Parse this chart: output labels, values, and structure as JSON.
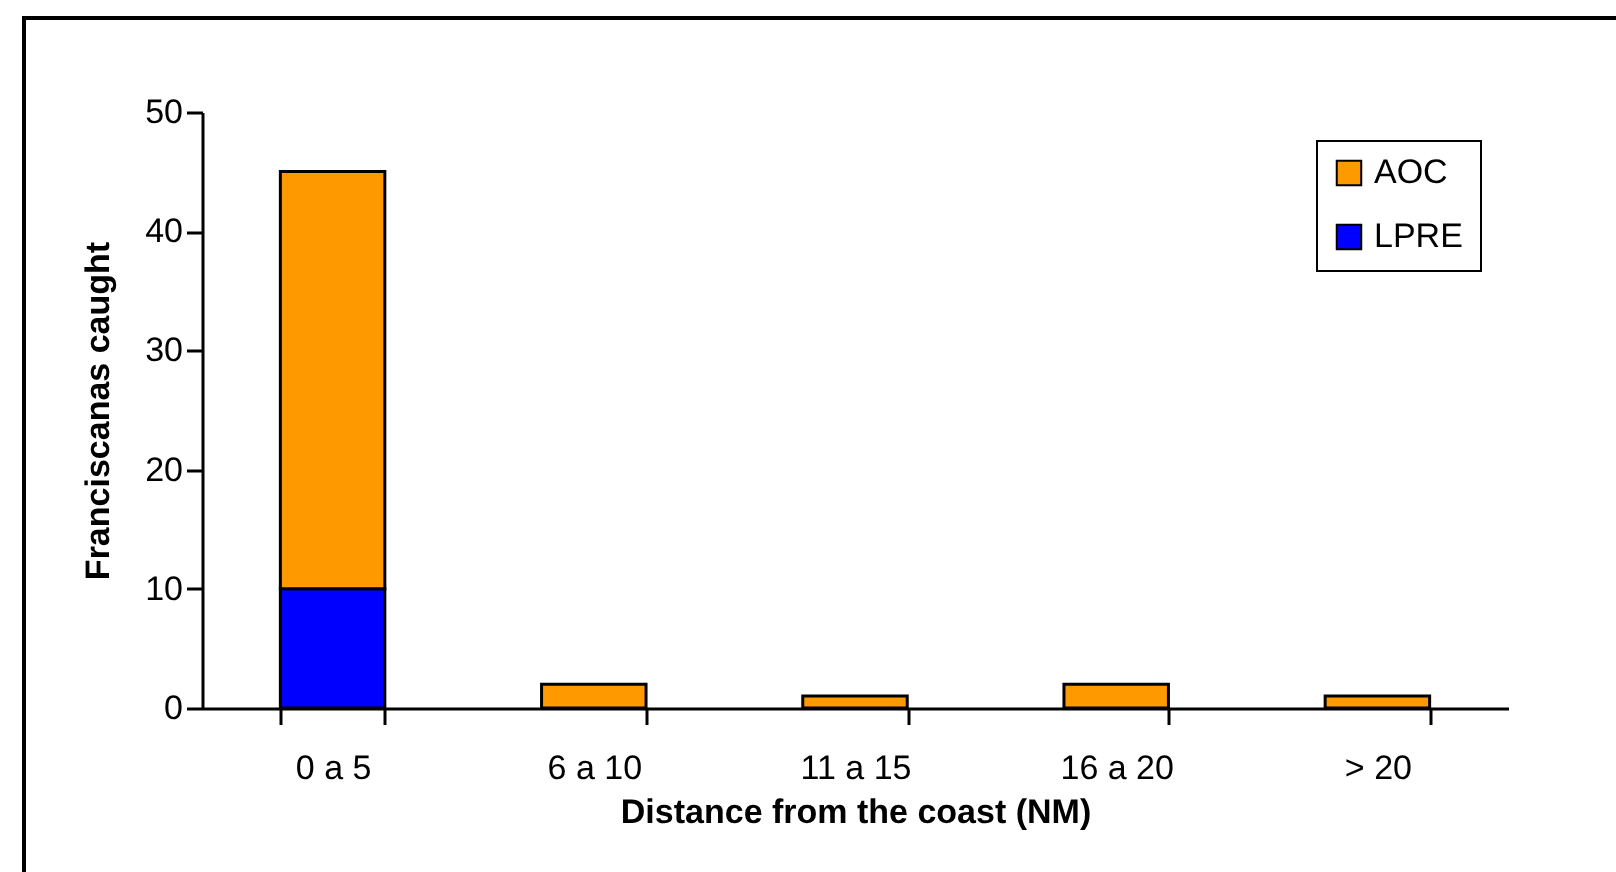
{
  "chart_data": {
    "type": "bar",
    "stacked": true,
    "xlabel": "Distance from the coast (NM)",
    "ylabel": "Franciscanas caught",
    "categories": [
      "0 a 5",
      "6 a 10",
      "11 a 15",
      "16 a 20",
      "> 20"
    ],
    "series": [
      {
        "name": "LPRE",
        "color": "#0000ff",
        "values": [
          10,
          0,
          0,
          0,
          0
        ]
      },
      {
        "name": "AOC",
        "color": "#ff9900",
        "values": [
          35,
          2,
          1,
          2,
          1
        ]
      }
    ],
    "ylim": [
      0,
      50
    ],
    "yticks": [
      0,
      10,
      20,
      30,
      40,
      50
    ],
    "grid": false,
    "legend": "top right"
  }
}
